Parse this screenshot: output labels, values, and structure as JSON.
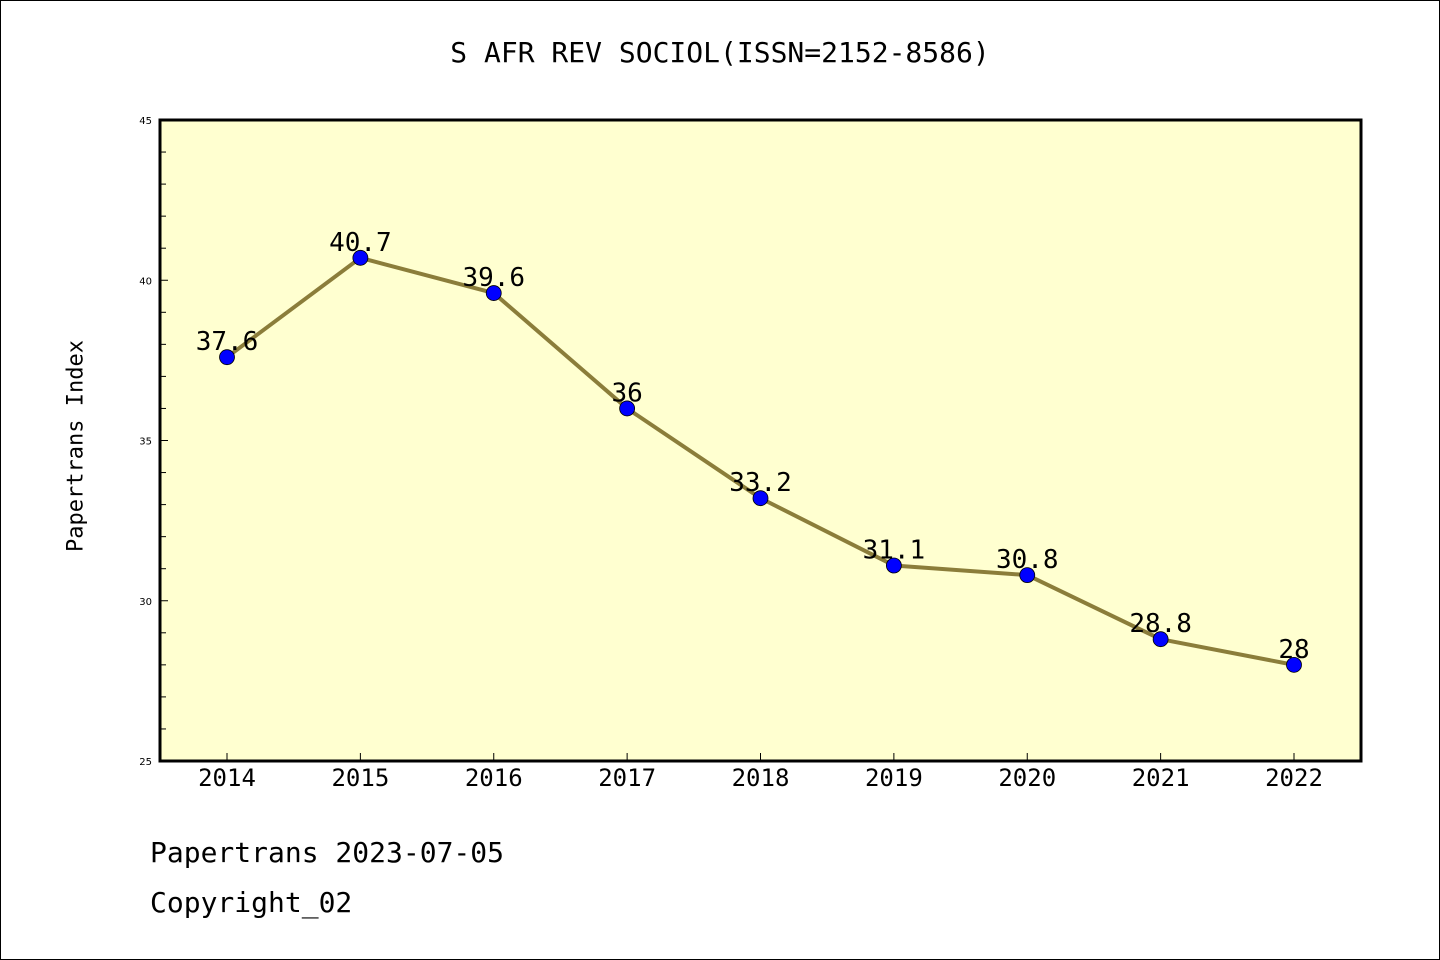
{
  "chart_data": {
    "type": "line",
    "title": "S AFR REV SOCIOL(ISSN=2152-8586)",
    "xlabel": "",
    "ylabel": "Papertrans Index",
    "categories": [
      "2014",
      "2015",
      "2016",
      "2017",
      "2018",
      "2019",
      "2020",
      "2021",
      "2022"
    ],
    "values": [
      37.6,
      40.7,
      39.6,
      36,
      33.2,
      31.1,
      30.8,
      28.8,
      28
    ],
    "data_labels": [
      "37.6",
      "40.7",
      "39.6",
      "36",
      "33.2",
      "31.1",
      "30.8",
      "28.8",
      "28"
    ],
    "ylim": [
      25,
      45
    ],
    "yticks": [
      "25",
      "30",
      "35",
      "40",
      "45"
    ],
    "grid": false,
    "colors": {
      "plot_background": "#ffffd0",
      "line": "#8b7d3a",
      "marker": "#0000ff"
    }
  },
  "footer": {
    "line1": "Papertrans 2023-07-05",
    "line2": "Copyright_02"
  }
}
